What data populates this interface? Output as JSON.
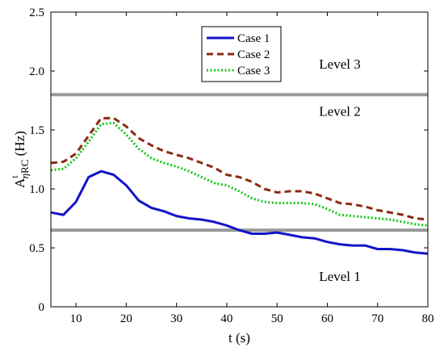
{
  "chart_data": {
    "type": "line",
    "xlabel": "t (s)",
    "ylabel": {
      "main": "A",
      "superscript": "t",
      "subscript_greek": "η",
      "subscript": "RC",
      "unit": " (Hz)"
    },
    "xlim": [
      5,
      80
    ],
    "ylim": [
      0,
      2.5
    ],
    "xticks": [
      10,
      20,
      30,
      40,
      50,
      60,
      70,
      80
    ],
    "yticks": [
      0,
      0.5,
      1,
      1.5,
      2,
      2.5
    ],
    "ytick_labels": [
      "0",
      "0.5",
      "1.0",
      "1.5",
      "2.0",
      "2.5"
    ],
    "grid": false,
    "legend_position": "top-center",
    "x": [
      5,
      7.5,
      10,
      12.5,
      15,
      17.5,
      20,
      22.5,
      25,
      27.5,
      30,
      32.5,
      35,
      37.5,
      40,
      42.5,
      45,
      47.5,
      50,
      52.5,
      55,
      57.5,
      60,
      62.5,
      65,
      67.5,
      70,
      72.5,
      75,
      77.5,
      80
    ],
    "series": [
      {
        "name": "Case 1",
        "color": "#1414c8",
        "style": "solid",
        "values": [
          0.8,
          0.78,
          0.89,
          1.1,
          1.15,
          1.12,
          1.03,
          0.9,
          0.84,
          0.81,
          0.77,
          0.75,
          0.74,
          0.72,
          0.69,
          0.65,
          0.62,
          0.62,
          0.63,
          0.61,
          0.59,
          0.58,
          0.55,
          0.53,
          0.52,
          0.52,
          0.49,
          0.49,
          0.48,
          0.46,
          0.45
        ]
      },
      {
        "name": "Case 2",
        "color": "#8b2a10",
        "style": "dashed",
        "values": [
          1.22,
          1.23,
          1.3,
          1.45,
          1.6,
          1.6,
          1.53,
          1.43,
          1.37,
          1.32,
          1.29,
          1.26,
          1.22,
          1.18,
          1.12,
          1.1,
          1.06,
          1.0,
          0.97,
          0.98,
          0.98,
          0.96,
          0.92,
          0.88,
          0.87,
          0.85,
          0.82,
          0.8,
          0.78,
          0.75,
          0.74
        ]
      },
      {
        "name": "Case 3",
        "color": "#14c814",
        "style": "dotted",
        "values": [
          1.16,
          1.17,
          1.26,
          1.4,
          1.55,
          1.56,
          1.46,
          1.34,
          1.26,
          1.22,
          1.19,
          1.15,
          1.1,
          1.05,
          1.03,
          0.98,
          0.92,
          0.89,
          0.88,
          0.88,
          0.88,
          0.87,
          0.83,
          0.78,
          0.77,
          0.76,
          0.75,
          0.74,
          0.72,
          0.7,
          0.69
        ]
      }
    ],
    "threshold_lines": {
      "color": "#999999",
      "values": [
        0.65,
        1.8
      ]
    },
    "annotations": [
      {
        "text": "Level 3",
        "x": 62.5,
        "y": 2.02
      },
      {
        "text": "Level 2",
        "x": 62.5,
        "y": 1.62
      },
      {
        "text": "Level 1",
        "x": 62.5,
        "y": 0.22
      }
    ]
  }
}
